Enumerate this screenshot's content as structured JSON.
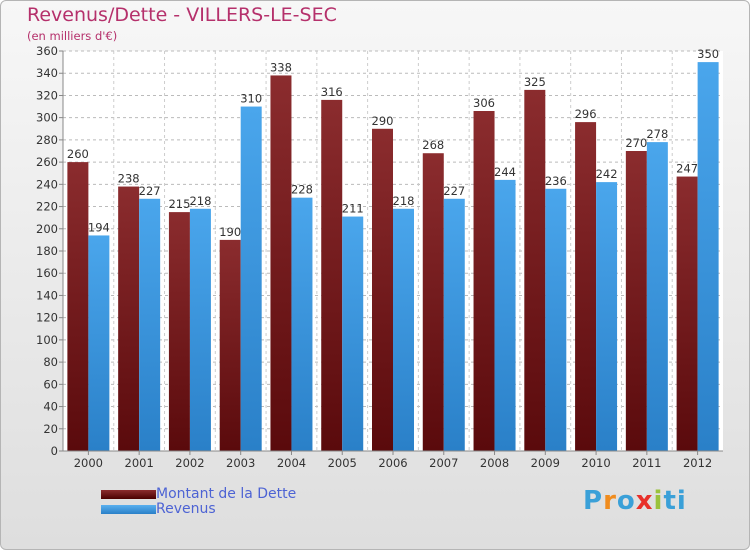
{
  "title": "Revenus/Dette - VILLERS-LE-SEC",
  "subtitle": "(en milliers d'€)",
  "logo_text": "Proxiti",
  "colors": {
    "title": "#b5306b",
    "series_dette": "#7a1f22",
    "series_revenus": "#3a97e0",
    "legend_text": "#4d63d4"
  },
  "chart_data": {
    "type": "bar",
    "categories": [
      "2000",
      "2001",
      "2002",
      "2003",
      "2004",
      "2005",
      "2006",
      "2007",
      "2008",
      "2009",
      "2010",
      "2011",
      "2012"
    ],
    "series": [
      {
        "name": "Montant de la Dette",
        "values": [
          260,
          238,
          215,
          190,
          338,
          316,
          290,
          268,
          306,
          325,
          296,
          270,
          247
        ]
      },
      {
        "name": "Revenus",
        "values": [
          194,
          227,
          218,
          310,
          228,
          211,
          218,
          227,
          244,
          236,
          242,
          278,
          350
        ]
      }
    ],
    "ylim": [
      0,
      360
    ],
    "ytick_step": 20,
    "grid": true,
    "legend_position": "bottom-left"
  }
}
